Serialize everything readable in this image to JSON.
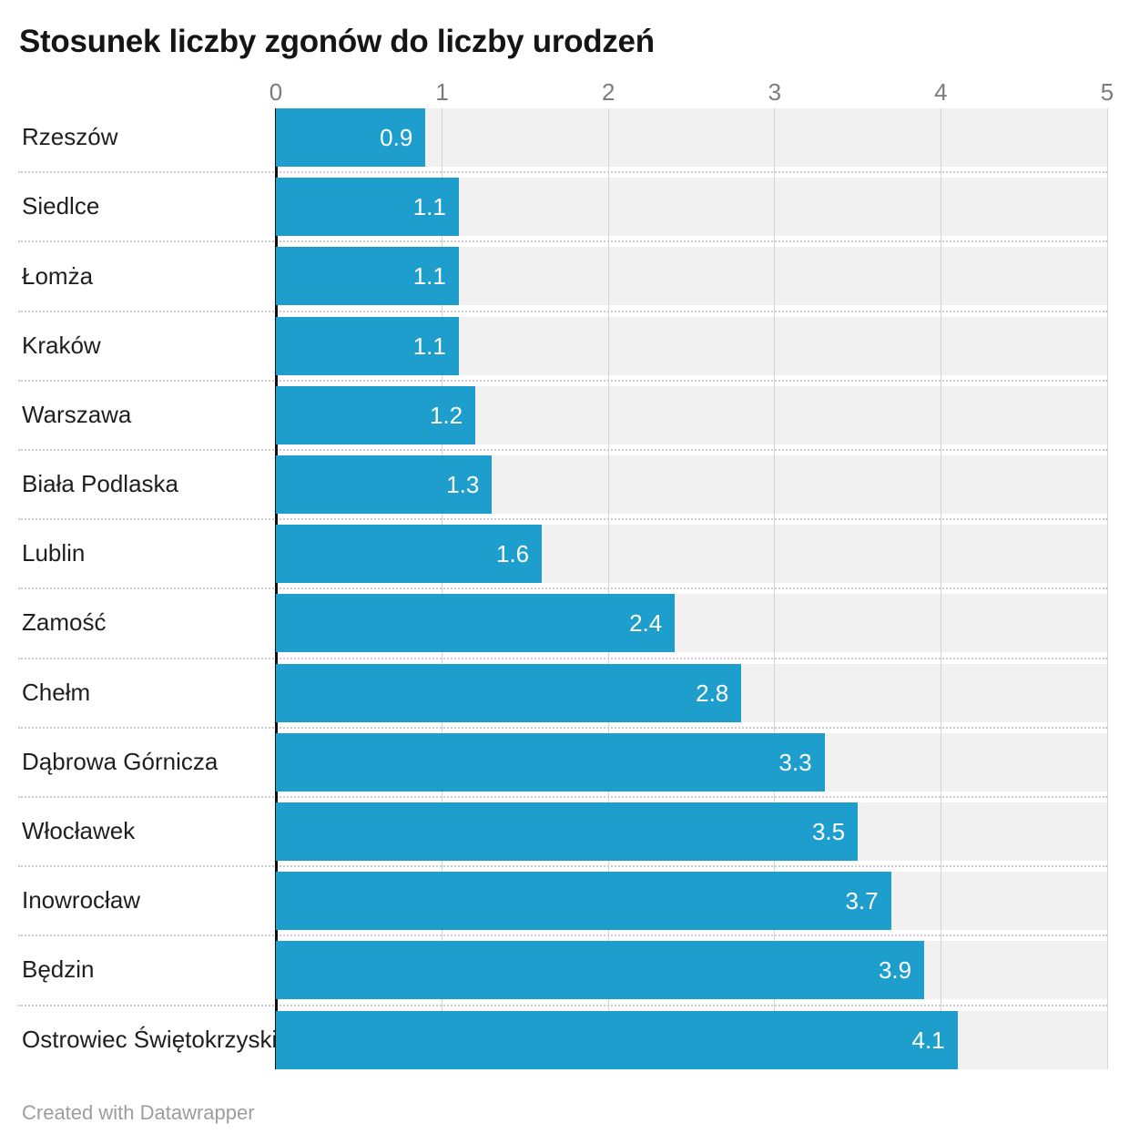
{
  "title": "Stosunek liczby zgonów do liczby urodzeń",
  "footer": {
    "attribution": "Created with Datawrapper"
  },
  "colors": {
    "bar": "#1d9ecd",
    "track": "#f1f1f2",
    "gridline": "#d4d4d4",
    "zero_line": "#101010",
    "tick_text": "#7c7c7c",
    "label_text": "#1f1f1f",
    "value_text": "#ffffff"
  },
  "chart_data": {
    "type": "bar",
    "orientation": "horizontal",
    "title": "Stosunek liczby zgonów do liczby urodzeń",
    "categories": [
      "Rzeszów",
      "Siedlce",
      "Łomża",
      "Kraków",
      "Warszawa",
      "Biała Podlaska",
      "Lublin",
      "Zamość",
      "Chełm",
      "Dąbrowa Górnicza",
      "Włocławek",
      "Inowrocław",
      "Będzin",
      "Ostrowiec Świętokrzyski"
    ],
    "values": [
      0.9,
      1.1,
      1.1,
      1.1,
      1.2,
      1.3,
      1.6,
      2.4,
      2.8,
      3.3,
      3.5,
      3.7,
      3.9,
      4.1
    ],
    "value_labels": [
      "0.9",
      "1.1",
      "1.1",
      "1.1",
      "1.2",
      "1.3",
      "1.6",
      "2.4",
      "2.8",
      "3.3",
      "3.5",
      "3.7",
      "3.9",
      "4.1"
    ],
    "xlabel": "",
    "ylabel": "",
    "xlim": [
      0,
      5
    ],
    "x_ticks": [
      "0",
      "1",
      "2",
      "3",
      "4",
      "5"
    ],
    "grid": true,
    "legend": false,
    "value_labels_position": "inside-end"
  }
}
